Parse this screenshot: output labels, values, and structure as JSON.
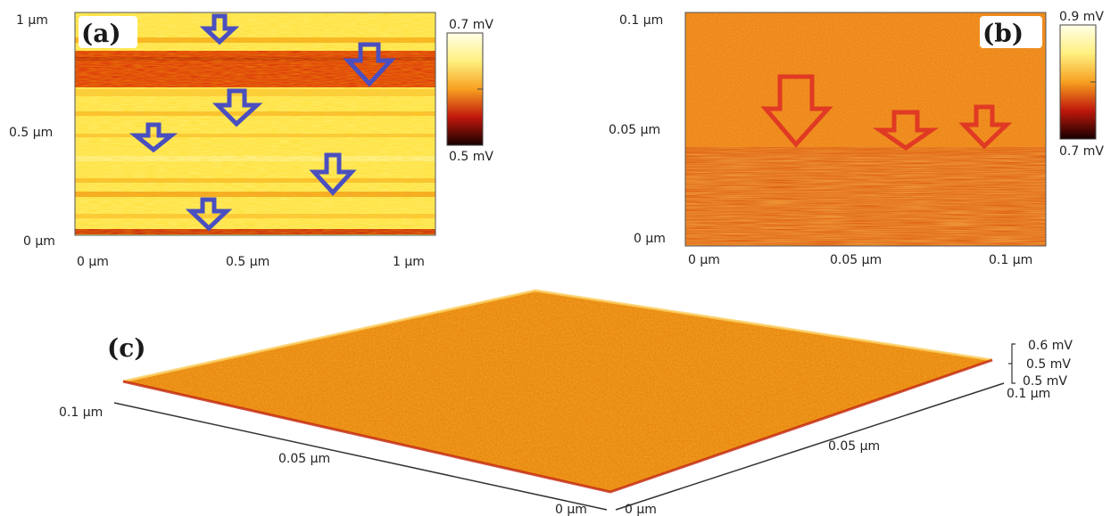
{
  "panels": {
    "a": {
      "label": "(a)",
      "y_ticks": [
        "1 µm",
        "0.5 µm",
        "0 µm"
      ],
      "x_ticks": [
        "0 µm",
        "0.5 µm",
        "1 µm"
      ],
      "colorbar": {
        "max": "0.7 mV",
        "min": "0.5 mV"
      },
      "arrow_color": "#4a4fc0"
    },
    "b": {
      "label": "(b)",
      "y_ticks": [
        "0.1 µm",
        "0.05 µm",
        "0 µm"
      ],
      "x_ticks": [
        "0 µm",
        "0.05 µm",
        "0.1 µm"
      ],
      "colorbar": {
        "max": "0.9 mV",
        "min": "0.7 mV"
      },
      "arrow_color": "#e03a24"
    },
    "c": {
      "label": "(c)",
      "z_ticks": [
        "0.6 mV",
        "0.5 mV",
        "0.5 mV"
      ],
      "left_axis": [
        "0.1 µm",
        "0.05 µm",
        "0 µm"
      ],
      "right_axis": [
        "0 µm",
        "0.05 µm",
        "0.1 µm"
      ]
    }
  },
  "colors": {
    "dark_red": "#c41a10",
    "orange": "#f08a1a",
    "yellow": "#fff066",
    "light_yellow": "#fffbb0"
  }
}
